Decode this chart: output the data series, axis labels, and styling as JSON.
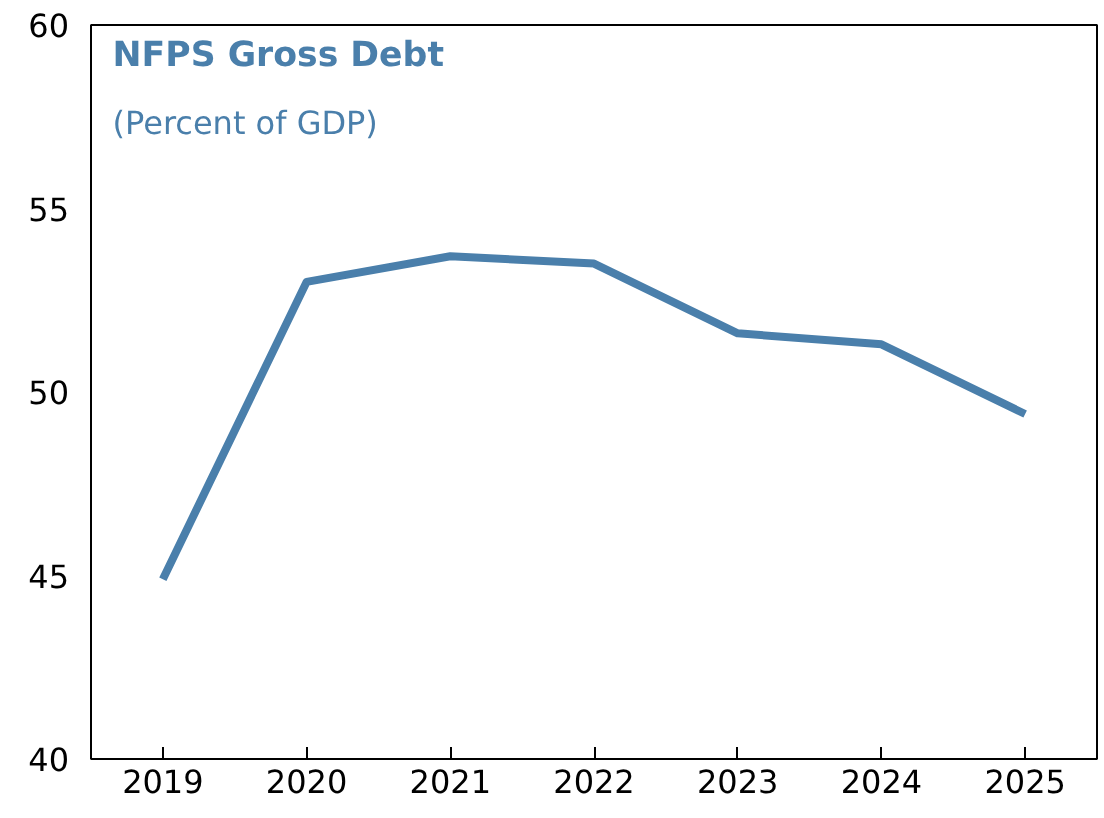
{
  "chart_data": {
    "type": "line",
    "title": "NFPS Gross Debt",
    "subtitle": "(Percent of GDP)",
    "categories": [
      "2019",
      "2020",
      "2021",
      "2022",
      "2023",
      "2024",
      "2025"
    ],
    "series": [
      {
        "color": "#4a7fab",
        "values": [
          44.9,
          53.0,
          53.7,
          53.5,
          51.6,
          51.3,
          49.4
        ]
      }
    ],
    "ylim": [
      40,
      60
    ],
    "yticks": [
      40,
      45,
      50,
      55,
      60
    ],
    "marker": "none",
    "line_style": "solid"
  }
}
